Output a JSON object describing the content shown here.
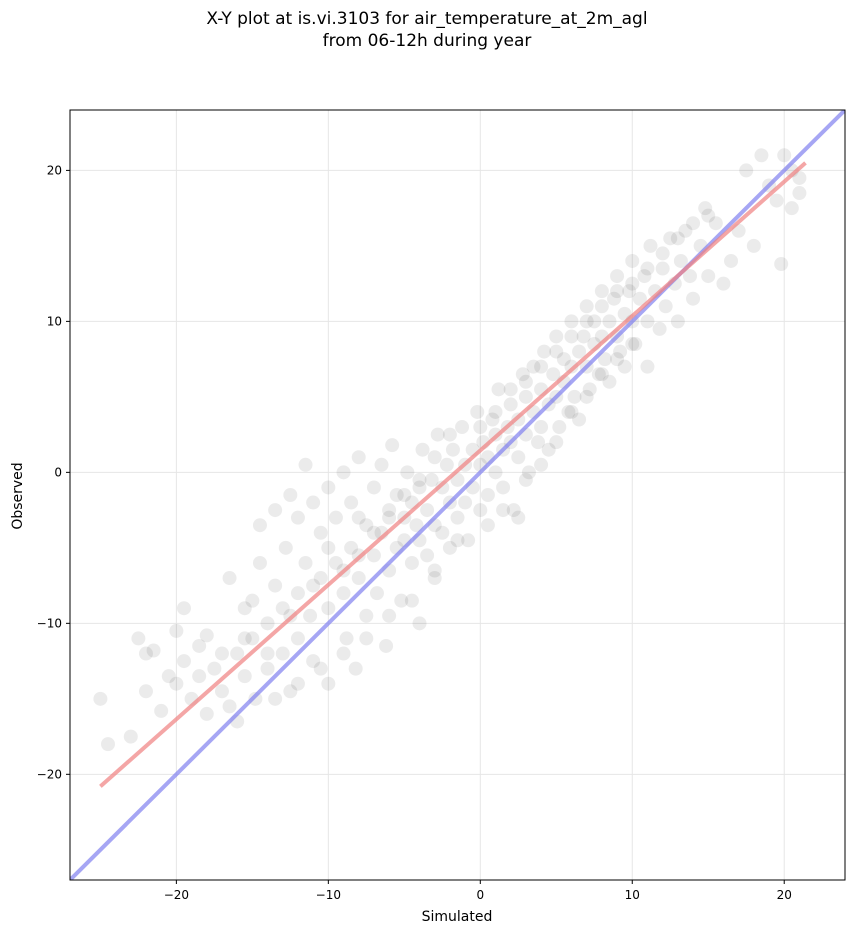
{
  "title_line1": "X-Y plot at is.vi.3103 for air_temperature_at_2m_agl",
  "title_line2": "from 06-12h during year",
  "chart_data": {
    "type": "scatter",
    "title": "X-Y plot at is.vi.3103 for air_temperature_at_2m_agl\nfrom 06-12h during year",
    "xlabel": "Simulated",
    "ylabel": "Observed",
    "xlim": [
      -27,
      24
    ],
    "ylim": [
      -27,
      24
    ],
    "xticks": [
      -20,
      -10,
      0,
      10,
      20
    ],
    "yticks": [
      -20,
      -10,
      0,
      10,
      20
    ],
    "xtick_labels": [
      "−20",
      "−10",
      "0",
      "10",
      "20"
    ],
    "ytick_labels": [
      "−20",
      "−10",
      "0",
      "10",
      "20"
    ],
    "grid": true,
    "point_color": "#000000",
    "point_alpha": 0.08,
    "fit_line": {
      "color": "#f08080",
      "x": [
        -25,
        21.4
      ],
      "y": [
        -20.8,
        20.5
      ]
    },
    "identity_line": {
      "color": "#8080f0",
      "x": [
        -27,
        24
      ],
      "y": [
        -27,
        24
      ]
    },
    "points": [
      [
        -25,
        -15
      ],
      [
        -24.5,
        -18
      ],
      [
        -23,
        -17.5
      ],
      [
        -22.5,
        -11
      ],
      [
        -22,
        -12
      ],
      [
        -22,
        -14.5
      ],
      [
        -21.5,
        -11.8
      ],
      [
        -21,
        -15.8
      ],
      [
        -20.5,
        -13.5
      ],
      [
        -20,
        -10.5
      ],
      [
        -20,
        -14
      ],
      [
        -19.5,
        -9
      ],
      [
        -19.5,
        -12.5
      ],
      [
        -19,
        -15
      ],
      [
        -18.5,
        -11.5
      ],
      [
        -18,
        -16
      ],
      [
        -18,
        -10.8
      ],
      [
        -17.5,
        -13
      ],
      [
        -17,
        -14.5
      ],
      [
        -16.5,
        -7
      ],
      [
        -16.5,
        -15.5
      ],
      [
        -16,
        -12
      ],
      [
        -16,
        -16.5
      ],
      [
        -15.5,
        -9
      ],
      [
        -15.5,
        -13.5
      ],
      [
        -15,
        -8.5
      ],
      [
        -15,
        -11
      ],
      [
        -14.8,
        -15
      ],
      [
        -14.5,
        -3.5
      ],
      [
        -14.5,
        -6
      ],
      [
        -14,
        -10
      ],
      [
        -14,
        -13
      ],
      [
        -13.5,
        -2.5
      ],
      [
        -13.5,
        -7.5
      ],
      [
        -13,
        -9
      ],
      [
        -13,
        -12
      ],
      [
        -12.8,
        -5
      ],
      [
        -12.5,
        -1.5
      ],
      [
        -12.5,
        -14.5
      ],
      [
        -12,
        -3
      ],
      [
        -12,
        -8
      ],
      [
        -12,
        -11
      ],
      [
        -11.5,
        0.5
      ],
      [
        -11.5,
        -6
      ],
      [
        -11.2,
        -9.5
      ],
      [
        -11,
        -2
      ],
      [
        -11,
        -12.5
      ],
      [
        -10.5,
        -4
      ],
      [
        -10.5,
        -7
      ],
      [
        -10,
        -1
      ],
      [
        -10,
        -9
      ],
      [
        -10,
        -14
      ],
      [
        -9.5,
        -3
      ],
      [
        -9.5,
        -6
      ],
      [
        -9,
        0
      ],
      [
        -9,
        -8
      ],
      [
        -8.8,
        -11
      ],
      [
        -8.5,
        -2
      ],
      [
        -8.5,
        -5
      ],
      [
        -8.2,
        -13
      ],
      [
        -8,
        1
      ],
      [
        -8,
        -7
      ],
      [
        -7.5,
        -3.5
      ],
      [
        -7.5,
        -9.5
      ],
      [
        -7,
        -1
      ],
      [
        -7,
        -5.5
      ],
      [
        -6.8,
        -8
      ],
      [
        -6.5,
        0.5
      ],
      [
        -6.5,
        -4
      ],
      [
        -6.2,
        -11.5
      ],
      [
        -6,
        -2.5
      ],
      [
        -6,
        -6.5
      ],
      [
        -5.8,
        1.8
      ],
      [
        -5.5,
        -1.5
      ],
      [
        -5.5,
        -5
      ],
      [
        -5.2,
        -8.5
      ],
      [
        -5,
        -3
      ],
      [
        -5,
        -4.5
      ],
      [
        -4.8,
        0
      ],
      [
        -4.5,
        -2
      ],
      [
        -4.5,
        -6
      ],
      [
        -4.2,
        -3.5
      ],
      [
        -4,
        -1
      ],
      [
        -4,
        -4.5
      ],
      [
        -4,
        -10
      ],
      [
        -3.8,
        1.5
      ],
      [
        -3.5,
        -2.5
      ],
      [
        -3.5,
        -5.5
      ],
      [
        -3.2,
        -0.5
      ],
      [
        -3,
        -3.5
      ],
      [
        -3,
        -7
      ],
      [
        -2.8,
        2.5
      ],
      [
        -2.5,
        -1
      ],
      [
        -2.5,
        -4
      ],
      [
        -2.2,
        0.5
      ],
      [
        -2,
        -2
      ],
      [
        -2,
        -5
      ],
      [
        -1.8,
        1.5
      ],
      [
        -1.5,
        -0.5
      ],
      [
        -1.5,
        -3
      ],
      [
        -1.2,
        3
      ],
      [
        -1,
        0.5
      ],
      [
        -1,
        -2
      ],
      [
        -0.8,
        -4.5
      ],
      [
        -0.5,
        1.5
      ],
      [
        -0.5,
        -1
      ],
      [
        -0.2,
        4
      ],
      [
        0,
        0.5
      ],
      [
        0,
        -2.5
      ],
      [
        0.2,
        2
      ],
      [
        0.5,
        1
      ],
      [
        0.5,
        -1.5
      ],
      [
        0.8,
        3.5
      ],
      [
        1,
        0
      ],
      [
        1,
        2.5
      ],
      [
        1.2,
        5.5
      ],
      [
        1.5,
        1.5
      ],
      [
        1.5,
        -1
      ],
      [
        1.8,
        3
      ],
      [
        2,
        2
      ],
      [
        2,
        4.5
      ],
      [
        2.2,
        -2.5
      ],
      [
        2.5,
        3.5
      ],
      [
        2.5,
        1
      ],
      [
        2.8,
        6.5
      ],
      [
        3,
        2.5
      ],
      [
        3,
        5
      ],
      [
        3.2,
        0
      ],
      [
        3.5,
        4
      ],
      [
        3.5,
        7
      ],
      [
        3.8,
        2
      ],
      [
        4,
        5.5
      ],
      [
        4,
        3
      ],
      [
        4.2,
        8
      ],
      [
        4.5,
        4.5
      ],
      [
        4.5,
        1.5
      ],
      [
        4.8,
        6.5
      ],
      [
        5,
        5
      ],
      [
        5,
        9
      ],
      [
        5.2,
        3
      ],
      [
        5.5,
        6
      ],
      [
        5.5,
        7.5
      ],
      [
        5.8,
        4
      ],
      [
        6,
        7
      ],
      [
        6,
        10
      ],
      [
        6.2,
        5
      ],
      [
        6.5,
        8
      ],
      [
        6.5,
        3.5
      ],
      [
        6.8,
        9
      ],
      [
        7,
        7
      ],
      [
        7,
        11
      ],
      [
        7.2,
        5.5
      ],
      [
        7.5,
        8.5
      ],
      [
        7.5,
        10
      ],
      [
        7.8,
        6.5
      ],
      [
        8,
        9
      ],
      [
        8,
        12
      ],
      [
        8.2,
        7.5
      ],
      [
        8.5,
        10
      ],
      [
        8.5,
        6
      ],
      [
        8.8,
        11.5
      ],
      [
        9,
        9
      ],
      [
        9,
        13
      ],
      [
        9.2,
        8
      ],
      [
        9.5,
        10.5
      ],
      [
        9.5,
        7
      ],
      [
        9.8,
        12
      ],
      [
        10,
        10
      ],
      [
        10,
        14
      ],
      [
        10.2,
        8.5
      ],
      [
        10.5,
        11.5
      ],
      [
        10.8,
        13
      ],
      [
        11,
        10
      ],
      [
        11,
        7
      ],
      [
        11.2,
        15
      ],
      [
        11.5,
        12
      ],
      [
        11.8,
        9.5
      ],
      [
        12,
        13.5
      ],
      [
        12.2,
        11
      ],
      [
        12.5,
        15.5
      ],
      [
        12.8,
        12.5
      ],
      [
        13,
        10
      ],
      [
        13.2,
        14
      ],
      [
        13.5,
        16
      ],
      [
        13.8,
        13
      ],
      [
        14,
        11.5
      ],
      [
        14.5,
        15
      ],
      [
        14.8,
        17.5
      ],
      [
        15,
        13
      ],
      [
        15.5,
        16.5
      ],
      [
        16,
        12.5
      ],
      [
        16.5,
        14
      ],
      [
        17,
        16
      ],
      [
        17.5,
        20
      ],
      [
        18,
        15
      ],
      [
        18.5,
        21
      ],
      [
        19,
        19
      ],
      [
        19.5,
        18
      ],
      [
        19.8,
        13.8
      ],
      [
        20,
        21
      ],
      [
        20.5,
        17.5
      ],
      [
        20.5,
        20
      ],
      [
        21,
        18.5
      ],
      [
        21,
        19.5
      ],
      [
        0.5,
        -3.5
      ],
      [
        -1.5,
        -4.5
      ],
      [
        1.5,
        -2.5
      ],
      [
        2.5,
        -3
      ],
      [
        -7.5,
        -11
      ],
      [
        -9,
        -12
      ],
      [
        -10.5,
        -13
      ],
      [
        -12,
        -14
      ],
      [
        -13.5,
        -15
      ],
      [
        -6,
        -9.5
      ],
      [
        -4.5,
        -8.5
      ],
      [
        -3,
        -6.5
      ],
      [
        3,
        -0.5
      ],
      [
        4,
        0.5
      ],
      [
        5,
        2
      ],
      [
        6,
        4
      ],
      [
        7,
        5
      ],
      [
        8,
        6.5
      ],
      [
        9,
        7.5
      ],
      [
        10,
        8.5
      ],
      [
        -2,
        2.5
      ],
      [
        -3,
        1
      ],
      [
        -4,
        -0.5
      ],
      [
        -5,
        -1.5
      ],
      [
        -6,
        -3
      ],
      [
        -7,
        -4
      ],
      [
        -8,
        -5.5
      ],
      [
        -9,
        -6.5
      ],
      [
        0,
        3
      ],
      [
        1,
        4
      ],
      [
        2,
        5.5
      ],
      [
        3,
        6
      ],
      [
        4,
        7
      ],
      [
        5,
        8
      ],
      [
        6,
        9
      ],
      [
        7,
        10
      ],
      [
        8,
        11
      ],
      [
        9,
        12
      ],
      [
        10,
        12.5
      ],
      [
        11,
        13.5
      ],
      [
        12,
        14.5
      ],
      [
        13,
        15.5
      ],
      [
        14,
        16.5
      ],
      [
        15,
        17
      ],
      [
        -11,
        -7.5
      ],
      [
        -12.5,
        -9.5
      ],
      [
        -14,
        -12
      ],
      [
        -15.5,
        -11
      ],
      [
        -17,
        -12
      ],
      [
        -18.5,
        -13.5
      ],
      [
        -10,
        -5
      ],
      [
        -8,
        -3
      ]
    ]
  }
}
